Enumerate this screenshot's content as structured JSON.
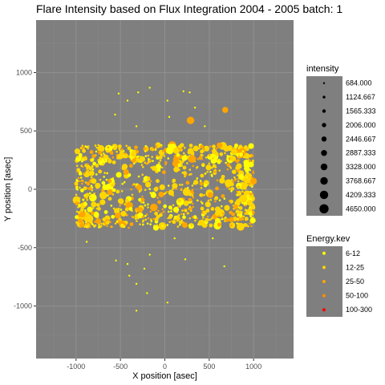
{
  "colors": {
    "panel_bg": "#7f7f7f",
    "grid_major": "#8f8f8f",
    "grid_minor": "#878787",
    "legend_key_bg": "#7f7f7f",
    "point_min": "#ffff00",
    "point_mid": "#ffd700",
    "point_high": "#ffa500",
    "point_top": "#ff0000"
  },
  "chart_data": {
    "type": "scatter",
    "title": "Flare Intensity based on Flux Integration 2004 - 2005  batch:  1",
    "xlabel": "X position [asec]",
    "ylabel": "Y position [asec]",
    "xlim": [
      -1450,
      1450
    ],
    "ylim": [
      -1450,
      1450
    ],
    "x_ticks": [
      -1000,
      -500,
      0,
      500,
      1000
    ],
    "y_ticks": [
      -1000,
      -500,
      0,
      500,
      1000
    ],
    "grid": true,
    "legend_placement": "right",
    "legend_size": {
      "title": "intensity",
      "entries": [
        "684.000",
        "1124.667",
        "1565.333",
        "2006.000",
        "2446.667",
        "2887.333",
        "3328.000",
        "3768.667",
        "4209.333",
        "4650.000"
      ]
    },
    "legend_color": {
      "title": "Energy.kev",
      "entries": [
        "6-12",
        "12-25",
        "25-50",
        "50-100",
        "100-300"
      ],
      "colors": [
        "#ffff00",
        "#ffd700",
        "#ffa500",
        "#ff8c00",
        "#ff0000"
      ]
    },
    "highlight_points": [
      {
        "x": 290,
        "y": 590,
        "intensity": 3400,
        "energy": "25-50"
      },
      {
        "x": 680,
        "y": 680,
        "intensity": 2700,
        "energy": "25-50"
      },
      {
        "x": 1000,
        "y": 70,
        "intensity": 3000,
        "energy": "25-50"
      },
      {
        "x": 130,
        "y": 330,
        "intensity": 2900,
        "energy": "12-25"
      },
      {
        "x": -350,
        "y": 300,
        "intensity": 2500,
        "energy": "12-25"
      },
      {
        "x": -120,
        "y": 180,
        "intensity": 2300,
        "energy": "12-25"
      },
      {
        "x": 130,
        "y": 170,
        "intensity": 2600,
        "energy": "12-25"
      },
      {
        "x": 560,
        "y": 320,
        "intensity": 2200,
        "energy": "12-25"
      },
      {
        "x": -800,
        "y": 70,
        "intensity": 2400,
        "energy": "12-25"
      },
      {
        "x": 350,
        "y": 60,
        "intensity": 2200,
        "energy": "12-25"
      },
      {
        "x": 780,
        "y": 150,
        "intensity": 2000,
        "energy": "12-25"
      },
      {
        "x": -500,
        "y": -100,
        "intensity": 2300,
        "energy": "12-25"
      },
      {
        "x": 240,
        "y": -120,
        "intensity": 2500,
        "energy": "12-25"
      },
      {
        "x": 800,
        "y": -150,
        "intensity": 2100,
        "energy": "25-50"
      },
      {
        "x": -950,
        "y": -270,
        "intensity": 2200,
        "energy": "25-50"
      },
      {
        "x": 150,
        "y": -250,
        "intensity": 1900,
        "energy": "12-25"
      },
      {
        "x": 750,
        "y": -260,
        "intensity": 2300,
        "energy": "25-50"
      },
      {
        "x": -100,
        "y": 0,
        "intensity": 2000,
        "energy": "12-25"
      },
      {
        "x": 450,
        "y": -200,
        "intensity": 1800,
        "energy": "12-25"
      },
      {
        "x": -620,
        "y": 240,
        "intensity": 1900,
        "energy": "12-25"
      }
    ],
    "scattered_points": [
      {
        "x": -520,
        "y": 820
      },
      {
        "x": -420,
        "y": 760
      },
      {
        "x": -300,
        "y": 830
      },
      {
        "x": -170,
        "y": 870
      },
      {
        "x": 30,
        "y": 760
      },
      {
        "x": 210,
        "y": 840
      },
      {
        "x": 280,
        "y": 830
      },
      {
        "x": 450,
        "y": 540
      },
      {
        "x": -560,
        "y": 640
      },
      {
        "x": 50,
        "y": 620
      },
      {
        "x": -320,
        "y": 540
      },
      {
        "x": 340,
        "y": 700
      },
      {
        "x": -550,
        "y": -610
      },
      {
        "x": -420,
        "y": -640
      },
      {
        "x": -400,
        "y": -740
      },
      {
        "x": -230,
        "y": -680
      },
      {
        "x": -320,
        "y": -810
      },
      {
        "x": -200,
        "y": -890
      },
      {
        "x": 30,
        "y": -970
      },
      {
        "x": -320,
        "y": -1040
      },
      {
        "x": 670,
        "y": -660
      },
      {
        "x": 230,
        "y": -600
      },
      {
        "x": -880,
        "y": -450
      },
      {
        "x": 110,
        "y": -420
      },
      {
        "x": 540,
        "y": -420
      },
      {
        "x": -170,
        "y": -560
      }
    ]
  }
}
